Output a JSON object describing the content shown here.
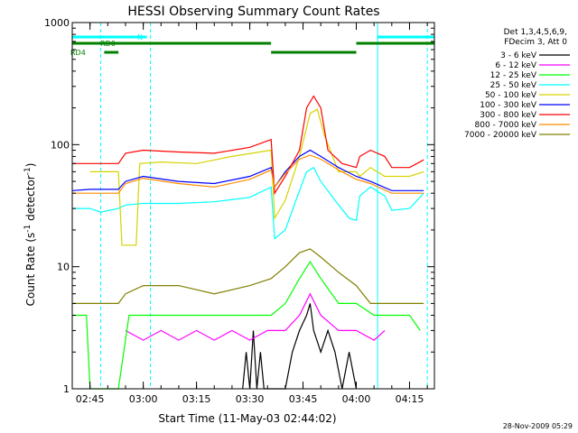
{
  "chart_data": {
    "type": "line",
    "title": "HESSI Observing Summary Count Rates",
    "xlabel": "Start Time (11-May-03 02:44:02)",
    "ylabel_main": "Count Rate (s",
    "ylabel_sup1": "-1",
    "ylabel_mid": " detector",
    "ylabel_sup2": "-1",
    "ylabel_end": ")",
    "y_scale": "log",
    "ylim": [
      1,
      1000
    ],
    "xlim": [
      "02:40",
      "04:22"
    ],
    "y_ticks": [
      {
        "value": 1,
        "label": "1"
      },
      {
        "value": 10,
        "label": "10"
      },
      {
        "value": 100,
        "label": "100"
      },
      {
        "value": 1000,
        "label": "1000"
      }
    ],
    "x_ticks": [
      {
        "time": "02:45",
        "label": "02:45"
      },
      {
        "time": "03:00",
        "label": "03:00"
      },
      {
        "time": "03:15",
        "label": "03:15"
      },
      {
        "time": "03:30",
        "label": "03:30"
      },
      {
        "time": "03:45",
        "label": "03:45"
      },
      {
        "time": "04:00",
        "label": "04:00"
      },
      {
        "time": "04:15",
        "label": "04:15"
      }
    ],
    "legend_header": [
      "Det 1,3,4,5,6,9,",
      "FDecim 3, Att 0"
    ],
    "legend_placement": "right, outside plot",
    "series": [
      {
        "name": "3 - 6 keV",
        "color": "#000000",
        "points": [
          [
            "03:28",
            1
          ],
          [
            "03:29",
            2
          ],
          [
            "03:30",
            1
          ],
          [
            "03:31",
            3
          ],
          [
            "03:32",
            1
          ],
          [
            "03:33",
            2
          ],
          [
            "03:34",
            1
          ],
          [
            "03:40",
            1
          ],
          [
            "03:42",
            2
          ],
          [
            "03:44",
            3
          ],
          [
            "03:46",
            4
          ],
          [
            "03:47",
            5
          ],
          [
            "03:48",
            3
          ],
          [
            "03:50",
            2
          ],
          [
            "03:52",
            3
          ],
          [
            "03:54",
            2
          ],
          [
            "03:56",
            1
          ],
          [
            "03:58",
            2
          ],
          [
            "04:00",
            1
          ]
        ]
      },
      {
        "name": "6 - 12 keV",
        "color": "#ff00ff",
        "points": [
          [
            "02:55",
            3
          ],
          [
            "03:00",
            2.5
          ],
          [
            "03:05",
            3
          ],
          [
            "03:10",
            2.5
          ],
          [
            "03:15",
            3
          ],
          [
            "03:20",
            2.5
          ],
          [
            "03:25",
            3
          ],
          [
            "03:30",
            2.5
          ],
          [
            "03:35",
            3
          ],
          [
            "03:40",
            3
          ],
          [
            "03:44",
            4
          ],
          [
            "03:47",
            6
          ],
          [
            "03:50",
            4
          ],
          [
            "03:55",
            3
          ],
          [
            "04:00",
            3
          ],
          [
            "04:05",
            2.5
          ],
          [
            "04:08",
            3
          ]
        ]
      },
      {
        "name": "12 - 25 keV",
        "color": "#00ff00",
        "points": [
          [
            "02:40",
            4
          ],
          [
            "02:44",
            4
          ],
          [
            "02:45",
            1
          ],
          [
            "02:53",
            1
          ],
          [
            "02:56",
            4
          ],
          [
            "03:05",
            4
          ],
          [
            "03:15",
            4
          ],
          [
            "03:25",
            4
          ],
          [
            "03:36",
            4
          ],
          [
            "03:40",
            5
          ],
          [
            "03:44",
            8
          ],
          [
            "03:47",
            11
          ],
          [
            "03:50",
            8
          ],
          [
            "03:55",
            5
          ],
          [
            "04:00",
            5
          ],
          [
            "04:05",
            4
          ],
          [
            "04:10",
            4
          ],
          [
            "04:15",
            4
          ],
          [
            "04:18",
            3
          ]
        ]
      },
      {
        "name": "25 - 50 keV",
        "color": "#00ffff",
        "points": [
          [
            "02:40",
            30
          ],
          [
            "02:45",
            30
          ],
          [
            "02:48",
            28
          ],
          [
            "02:53",
            30
          ],
          [
            "02:55",
            32
          ],
          [
            "03:00",
            33
          ],
          [
            "03:10",
            33
          ],
          [
            "03:20",
            34
          ],
          [
            "03:30",
            37
          ],
          [
            "03:36",
            45
          ],
          [
            "03:37",
            17
          ],
          [
            "03:40",
            20
          ],
          [
            "03:43",
            35
          ],
          [
            "03:46",
            60
          ],
          [
            "03:48",
            65
          ],
          [
            "03:50",
            50
          ],
          [
            "03:54",
            35
          ],
          [
            "03:58",
            25
          ],
          [
            "04:00",
            24
          ],
          [
            "04:01",
            38
          ],
          [
            "04:04",
            45
          ],
          [
            "04:08",
            38
          ],
          [
            "04:10",
            29
          ],
          [
            "04:15",
            30
          ],
          [
            "04:19",
            40
          ]
        ]
      },
      {
        "name": "50 - 100 keV",
        "color": "#d4d400",
        "points": [
          [
            "02:45",
            60
          ],
          [
            "02:53",
            60
          ],
          [
            "02:54",
            15
          ],
          [
            "02:58",
            15
          ],
          [
            "02:59",
            70
          ],
          [
            "03:05",
            72
          ],
          [
            "03:15",
            70
          ],
          [
            "03:25",
            80
          ],
          [
            "03:36",
            90
          ],
          [
            "03:37",
            25
          ],
          [
            "03:40",
            35
          ],
          [
            "03:44",
            80
          ],
          [
            "03:47",
            180
          ],
          [
            "03:49",
            195
          ],
          [
            "03:51",
            120
          ],
          [
            "03:55",
            60
          ],
          [
            "04:00",
            60
          ],
          [
            "04:01",
            55
          ],
          [
            "04:04",
            65
          ],
          [
            "04:08",
            55
          ],
          [
            "04:15",
            55
          ],
          [
            "04:19",
            60
          ]
        ]
      },
      {
        "name": "100 - 300 keV",
        "color": "#0000ff",
        "points": [
          [
            "02:40",
            42
          ],
          [
            "02:45",
            43
          ],
          [
            "02:53",
            43
          ],
          [
            "02:55",
            50
          ],
          [
            "03:00",
            55
          ],
          [
            "03:10",
            50
          ],
          [
            "03:20",
            48
          ],
          [
            "03:30",
            55
          ],
          [
            "03:36",
            65
          ],
          [
            "03:37",
            45
          ],
          [
            "03:40",
            60
          ],
          [
            "03:44",
            80
          ],
          [
            "03:47",
            90
          ],
          [
            "03:50",
            80
          ],
          [
            "03:55",
            65
          ],
          [
            "04:00",
            55
          ],
          [
            "04:04",
            50
          ],
          [
            "04:10",
            42
          ],
          [
            "04:15",
            42
          ],
          [
            "04:19",
            42
          ]
        ]
      },
      {
        "name": "300 - 800 keV",
        "color": "#ff0000",
        "points": [
          [
            "02:40",
            70
          ],
          [
            "02:45",
            70
          ],
          [
            "02:53",
            70
          ],
          [
            "02:55",
            85
          ],
          [
            "03:00",
            90
          ],
          [
            "03:10",
            87
          ],
          [
            "03:20",
            85
          ],
          [
            "03:30",
            95
          ],
          [
            "03:36",
            110
          ],
          [
            "03:37",
            40
          ],
          [
            "03:40",
            55
          ],
          [
            "03:44",
            90
          ],
          [
            "03:46",
            200
          ],
          [
            "03:48",
            250
          ],
          [
            "03:50",
            200
          ],
          [
            "03:52",
            90
          ],
          [
            "03:56",
            70
          ],
          [
            "04:00",
            65
          ],
          [
            "04:01",
            80
          ],
          [
            "04:04",
            90
          ],
          [
            "04:08",
            80
          ],
          [
            "04:10",
            65
          ],
          [
            "04:15",
            65
          ],
          [
            "04:19",
            75
          ]
        ]
      },
      {
        "name": "800 - 7000 keV",
        "color": "#ff8c00",
        "points": [
          [
            "02:40",
            40
          ],
          [
            "02:45",
            40
          ],
          [
            "02:53",
            40
          ],
          [
            "02:55",
            48
          ],
          [
            "03:00",
            53
          ],
          [
            "03:10",
            48
          ],
          [
            "03:20",
            45
          ],
          [
            "03:30",
            52
          ],
          [
            "03:36",
            62
          ],
          [
            "03:37",
            45
          ],
          [
            "03:40",
            58
          ],
          [
            "03:44",
            76
          ],
          [
            "03:47",
            82
          ],
          [
            "03:50",
            76
          ],
          [
            "03:55",
            62
          ],
          [
            "04:00",
            52
          ],
          [
            "04:04",
            48
          ],
          [
            "04:10",
            40
          ],
          [
            "04:15",
            40
          ],
          [
            "04:19",
            40
          ]
        ]
      },
      {
        "name": "7000 - 20000 keV",
        "color": "#808000",
        "points": [
          [
            "02:40",
            5
          ],
          [
            "02:45",
            5
          ],
          [
            "02:53",
            5
          ],
          [
            "02:55",
            6
          ],
          [
            "03:00",
            7
          ],
          [
            "03:10",
            7
          ],
          [
            "03:20",
            6
          ],
          [
            "03:30",
            7
          ],
          [
            "03:36",
            8
          ],
          [
            "03:40",
            10
          ],
          [
            "03:44",
            13
          ],
          [
            "03:47",
            14
          ],
          [
            "03:50",
            12
          ],
          [
            "03:55",
            9
          ],
          [
            "04:00",
            7
          ],
          [
            "04:04",
            5
          ],
          [
            "04:10",
            5
          ],
          [
            "04:15",
            5
          ],
          [
            "04:19",
            5
          ]
        ]
      }
    ],
    "status_bars": [
      {
        "label": "RD0",
        "color": "#008000",
        "segments": [
          [
            "02:40",
            "03:36"
          ],
          [
            "04:00",
            "04:22"
          ]
        ]
      },
      {
        "label": "RD4",
        "color": "#008000",
        "segments": [
          [
            "02:49",
            "02:53"
          ],
          [
            "03:36",
            "04:00"
          ]
        ]
      },
      {
        "label": "N",
        "color": "#00ffff",
        "segments": [
          [
            "02:40",
            "03:01"
          ],
          [
            "04:06",
            "04:22"
          ]
        ]
      }
    ],
    "vlines_solid": [
      "02:40",
      "04:06"
    ],
    "vlines_dashed": [
      "02:48",
      "03:02",
      "04:20"
    ],
    "vline_color": "#00ffff",
    "grid": false
  },
  "footer": {
    "timestamp": "28-Nov-2009 05:29"
  }
}
